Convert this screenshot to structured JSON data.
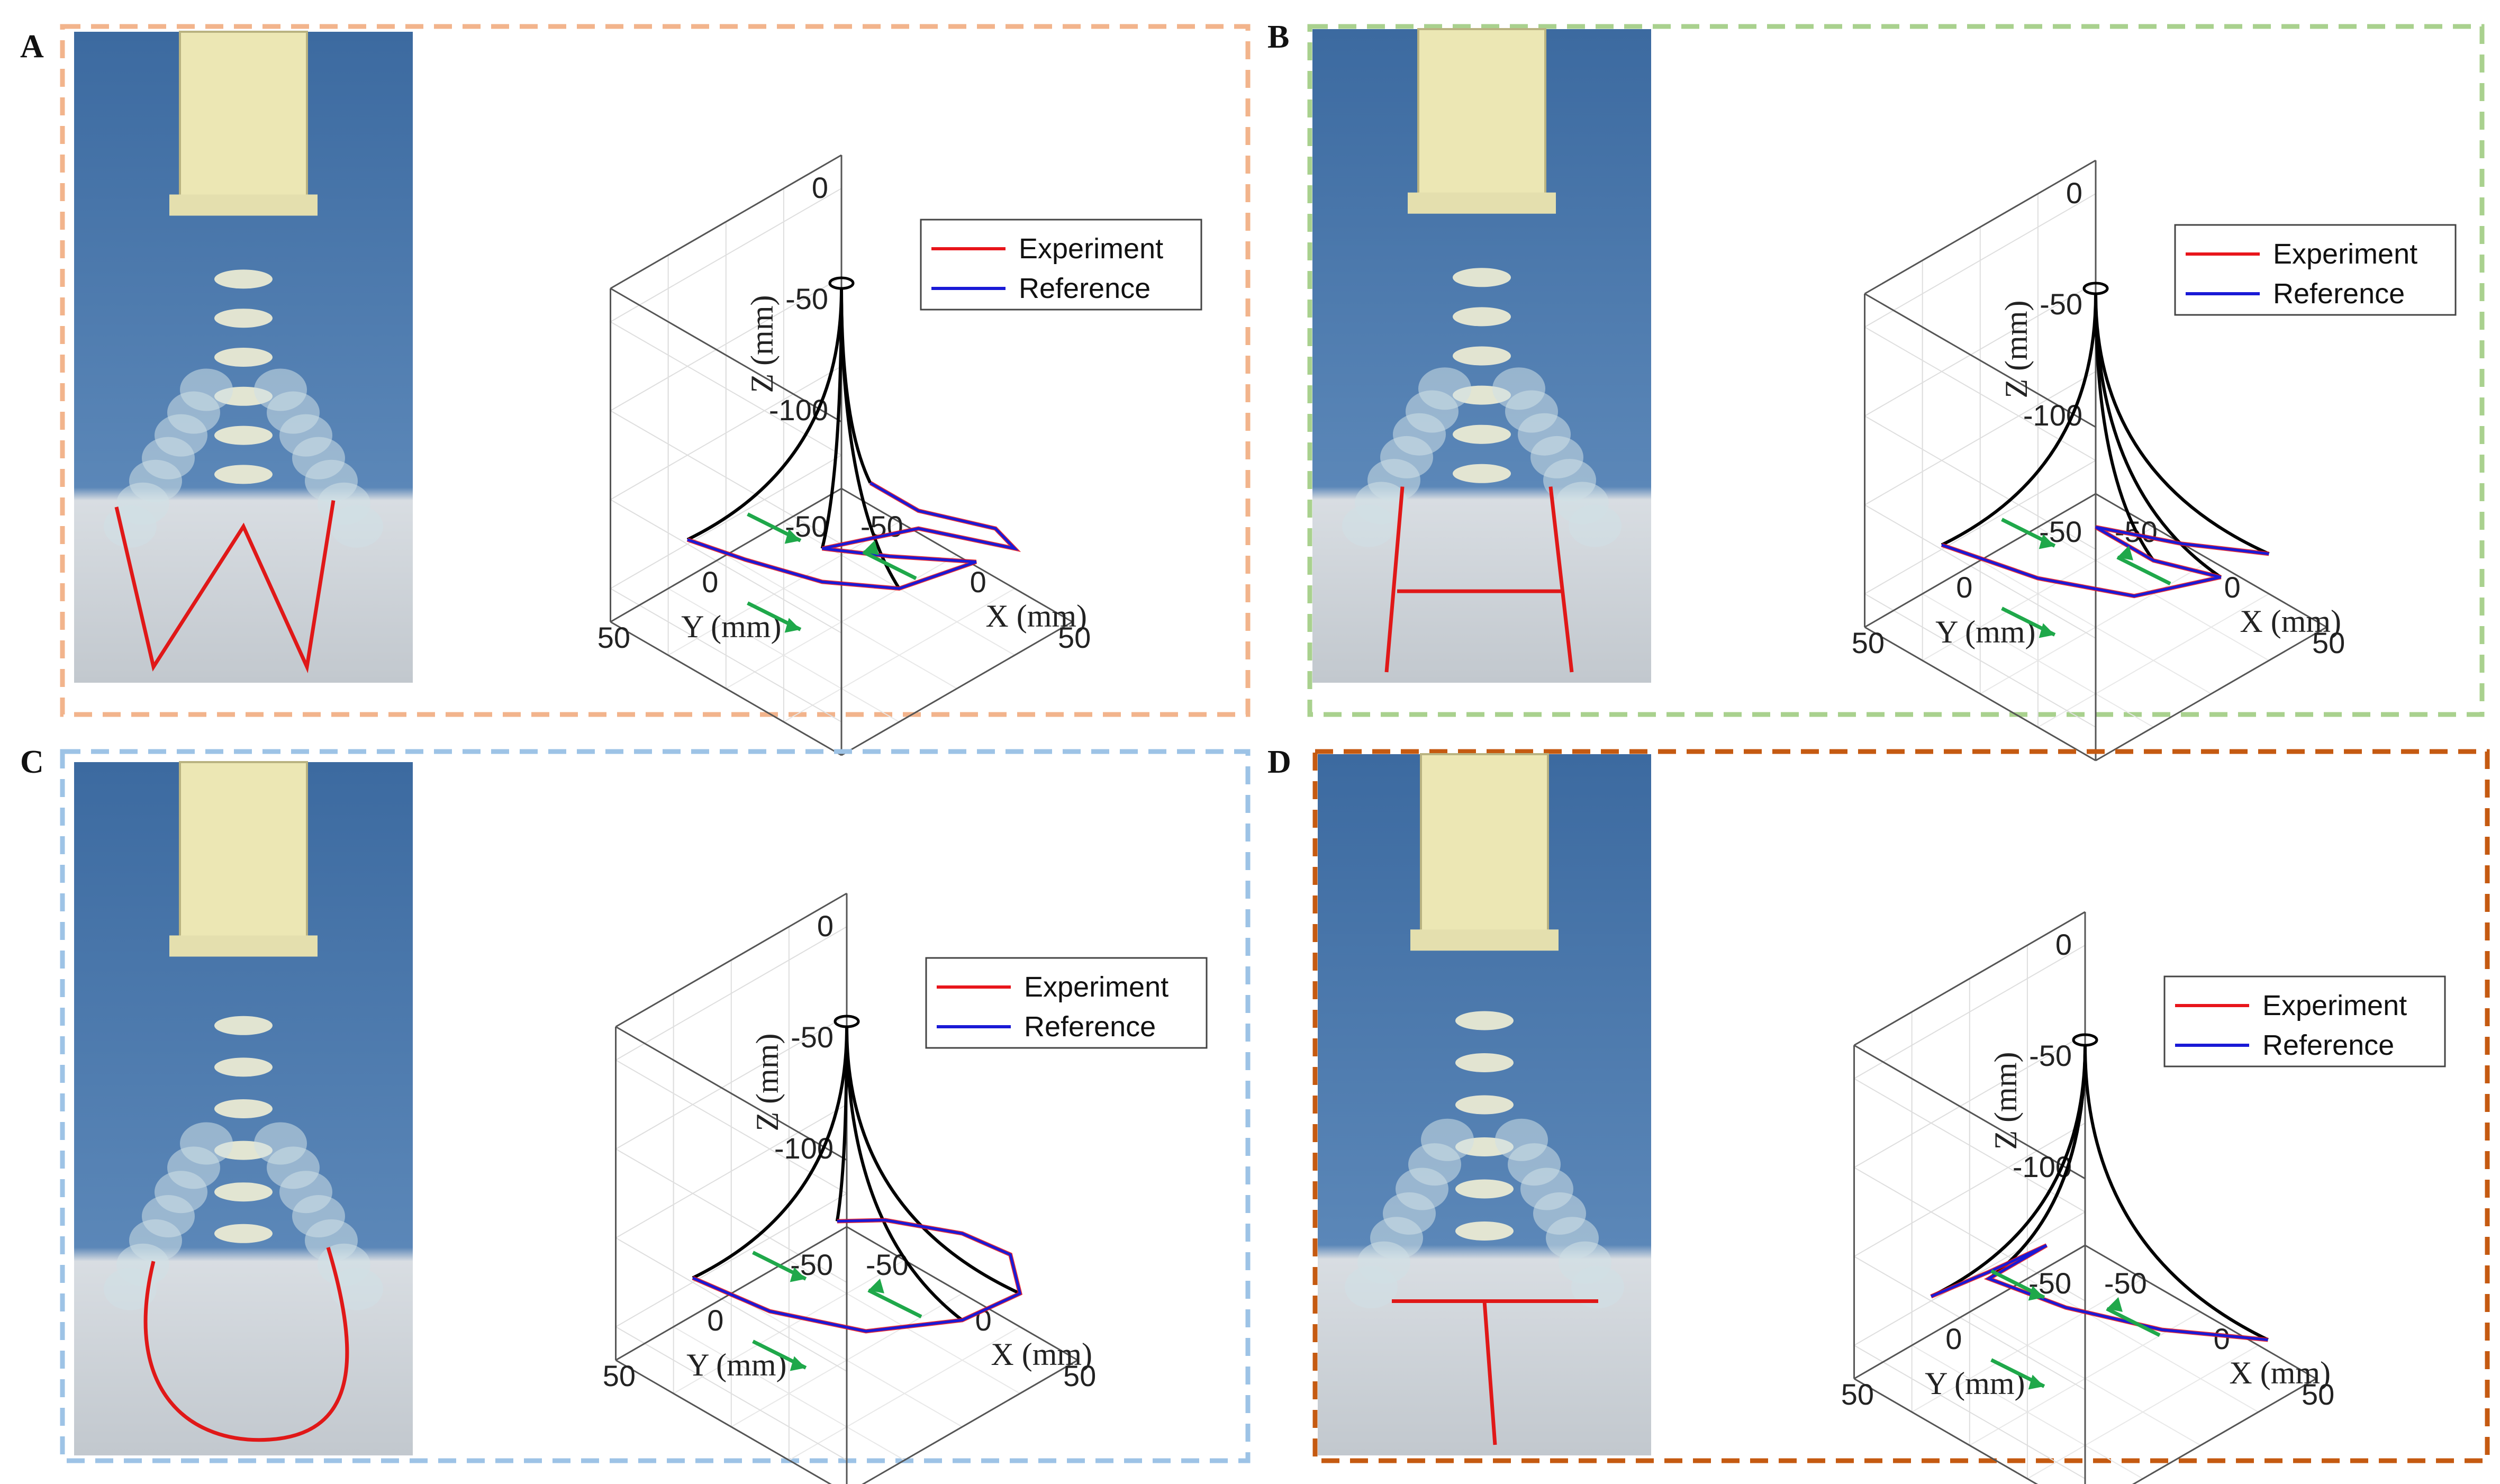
{
  "figure": {
    "colors": {
      "experiment": "#e8151b",
      "reference": "#1a1ad6",
      "backbone": "#000000",
      "arrows": "#1fa84a",
      "photo_overlay": "#e01818"
    }
  },
  "chart_data": [
    {
      "panel": "A",
      "type": "line",
      "frame_color": "#f2b48c",
      "photo_pattern": "W",
      "ylabel": "Y (mm)",
      "xlabel": "X (mm)",
      "zlabel": "Z (mm)",
      "z_ticks": [
        "0",
        "-50",
        "-100"
      ],
      "y_ticks": [
        "50",
        "0",
        "-50"
      ],
      "x_ticks": [
        "50",
        "0",
        "-50"
      ],
      "grid": true,
      "legend": {
        "placement": "top-right",
        "entries": [
          "Experiment",
          "Reference"
        ]
      },
      "series": [
        {
          "name": "Experiment",
          "points": [
            [
              -45,
              35,
              -103
            ],
            [
              -30,
              20,
              -112
            ],
            [
              -10,
              0,
              -122
            ],
            [
              10,
              -20,
              -125
            ],
            [
              25,
              -45,
              -118
            ],
            [
              10,
              -15,
              -108
            ],
            [
              -5,
              5,
              -102
            ],
            [
              15,
              -25,
              -98
            ],
            [
              35,
              -55,
              -112
            ],
            [
              30,
              -50,
              -103
            ],
            [
              10,
              -30,
              -95
            ],
            [
              0,
              -15,
              -80
            ]
          ]
        },
        {
          "name": "Reference",
          "points": [
            [
              -45,
              35,
              -103
            ],
            [
              -30,
              20,
              -112
            ],
            [
              -10,
              0,
              -122
            ],
            [
              10,
              -20,
              -125
            ],
            [
              25,
              -45,
              -118
            ],
            [
              10,
              -15,
              -108
            ],
            [
              -5,
              5,
              -102
            ],
            [
              15,
              -25,
              -98
            ],
            [
              35,
              -55,
              -112
            ],
            [
              30,
              -50,
              -103
            ],
            [
              10,
              -30,
              -95
            ],
            [
              0,
              -15,
              -80
            ]
          ]
        }
      ]
    },
    {
      "panel": "B",
      "type": "line",
      "frame_color": "#a9d18e",
      "photo_pattern": "H",
      "ylabel": "Y (mm)",
      "xlabel": "X (mm)",
      "zlabel": "Z (mm)",
      "z_ticks": [
        "0",
        "-50",
        "-100"
      ],
      "y_ticks": [
        "50",
        "0",
        "-50"
      ],
      "x_ticks": [
        "50",
        "0",
        "-50"
      ],
      "grid": true,
      "legend": {
        "placement": "top-right",
        "entries": [
          "Experiment",
          "Reference"
        ]
      },
      "series": [
        {
          "name": "Experiment",
          "points": [
            [
              -45,
              35,
              -103
            ],
            [
              -20,
              10,
              -118
            ],
            [
              5,
              -15,
              -126
            ],
            [
              25,
              -40,
              -120
            ],
            [
              10,
              -20,
              -110
            ],
            [
              -5,
              -5,
              -95
            ],
            [
              15,
              -30,
              -105
            ],
            [
              35,
              -55,
              -112
            ]
          ]
        },
        {
          "name": "Reference",
          "points": [
            [
              -45,
              35,
              -103
            ],
            [
              -20,
              10,
              -118
            ],
            [
              5,
              -15,
              -126
            ],
            [
              25,
              -40,
              -120
            ],
            [
              10,
              -20,
              -110
            ],
            [
              -5,
              -5,
              -95
            ],
            [
              15,
              -30,
              -105
            ],
            [
              35,
              -55,
              -112
            ]
          ]
        }
      ]
    },
    {
      "panel": "C",
      "type": "line",
      "frame_color": "#9dc3e6",
      "photo_pattern": "U",
      "ylabel": "Y (mm)",
      "xlabel": "X (mm)",
      "zlabel": "Z (mm)",
      "z_ticks": [
        "0",
        "-50",
        "-100"
      ],
      "y_ticks": [
        "50",
        "0",
        "-50"
      ],
      "x_ticks": [
        "50",
        "0",
        "-50"
      ],
      "grid": true,
      "legend": {
        "placement": "top-right",
        "entries": [
          "Experiment",
          "Reference"
        ]
      },
      "series": [
        {
          "name": "Experiment",
          "points": [
            [
              -45,
              35,
              -103
            ],
            [
              -25,
              15,
              -118
            ],
            [
              0,
              -10,
              -127
            ],
            [
              25,
              -35,
              -122
            ],
            [
              40,
              -50,
              -110
            ],
            [
              35,
              -50,
              -95
            ],
            [
              20,
              -40,
              -88
            ],
            [
              0,
              -20,
              -82
            ],
            [
              -10,
              -5,
              -80
            ]
          ]
        },
        {
          "name": "Reference",
          "points": [
            [
              -45,
              35,
              -103
            ],
            [
              -25,
              15,
              -118
            ],
            [
              0,
              -10,
              -127
            ],
            [
              25,
              -35,
              -122
            ],
            [
              40,
              -50,
              -110
            ],
            [
              35,
              -50,
              -95
            ],
            [
              20,
              -40,
              -88
            ],
            [
              0,
              -20,
              -82
            ],
            [
              -10,
              -5,
              -80
            ]
          ]
        }
      ]
    },
    {
      "panel": "D",
      "type": "line",
      "frame_color": "#c55a11",
      "photo_pattern": "T",
      "ylabel": "Y (mm)",
      "xlabel": "X (mm)",
      "zlabel": "Z (mm)",
      "z_ticks": [
        "0",
        "-50",
        "-100"
      ],
      "y_ticks": [
        "50",
        "0",
        "-50"
      ],
      "x_ticks": [
        "50",
        "0",
        "-50"
      ],
      "grid": true,
      "legend": {
        "placement": "top-right",
        "entries": [
          "Experiment",
          "Reference"
        ]
      },
      "series": [
        {
          "name": "Experiment",
          "points": [
            [
              -45,
              35,
              -103
            ],
            [
              -30,
              20,
              -92
            ],
            [
              -15,
              5,
              -80
            ],
            [
              -30,
              20,
              -95
            ],
            [
              -10,
              0,
              -108
            ],
            [
              15,
              -25,
              -118
            ],
            [
              40,
              -55,
              -125
            ]
          ]
        },
        {
          "name": "Reference",
          "points": [
            [
              -45,
              35,
              -103
            ],
            [
              -30,
              20,
              -92
            ],
            [
              -15,
              5,
              -80
            ],
            [
              -30,
              20,
              -95
            ],
            [
              -10,
              0,
              -108
            ],
            [
              15,
              -25,
              -118
            ],
            [
              40,
              -55,
              -125
            ]
          ]
        }
      ]
    }
  ]
}
